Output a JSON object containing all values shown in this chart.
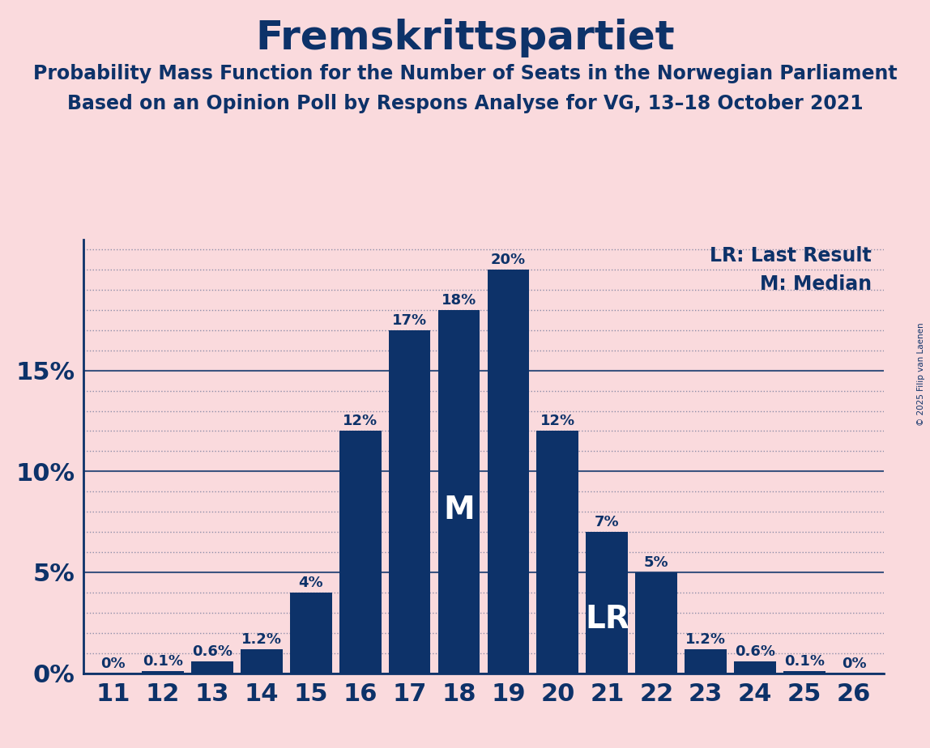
{
  "title": "Fremskrittspartiet",
  "subtitle1": "Probability Mass Function for the Number of Seats in the Norwegian Parliament",
  "subtitle2": "Based on an Opinion Poll by Respons Analyse for VG, 13–18 October 2021",
  "copyright": "© 2025 Filip van Laenen",
  "categories": [
    11,
    12,
    13,
    14,
    15,
    16,
    17,
    18,
    19,
    20,
    21,
    22,
    23,
    24,
    25,
    26
  ],
  "values": [
    0.0,
    0.1,
    0.6,
    1.2,
    4.0,
    12.0,
    17.0,
    18.0,
    20.0,
    12.0,
    7.0,
    5.0,
    1.2,
    0.6,
    0.1,
    0.0
  ],
  "bar_color": "#0d3269",
  "background_color": "#fadadd",
  "text_color": "#0d3269",
  "median_seat": 18,
  "last_result_seat": 21,
  "lr_label": "LR",
  "m_label": "M",
  "legend_lr": "LR: Last Result",
  "legend_m": "M: Median",
  "yticks": [
    0,
    5,
    10,
    15
  ],
  "ylim": [
    0,
    21.5
  ],
  "bar_labels": [
    "0%",
    "0.1%",
    "0.6%",
    "1.2%",
    "4%",
    "12%",
    "17%",
    "18%",
    "20%",
    "12%",
    "7%",
    "5%",
    "1.2%",
    "0.6%",
    "0.1%",
    "0%"
  ]
}
